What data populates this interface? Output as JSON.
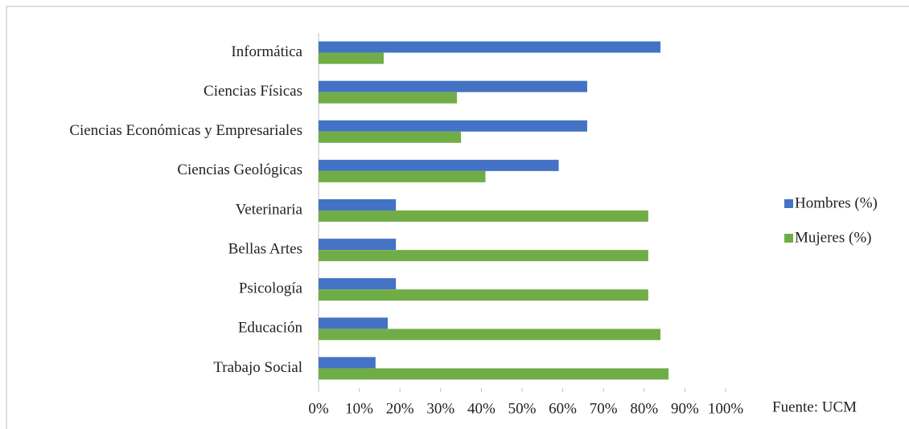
{
  "chart_data": {
    "type": "hbar",
    "categories": [
      "Informática",
      "Ciencias Físicas",
      "Ciencias Económicas y Empresariales",
      "Ciencias Geológicas",
      "Veterinaria",
      "Bellas Artes",
      "Psicología",
      "Educación",
      "Trabajo Social"
    ],
    "series": [
      {
        "name": "Hombres (%)",
        "color": "#4472c4",
        "values": [
          84,
          66,
          66,
          59,
          19,
          19,
          19,
          17,
          14
        ]
      },
      {
        "name": "Mujeres (%)",
        "color": "#70ad47",
        "values": [
          16,
          34,
          35,
          41,
          81,
          81,
          81,
          84,
          86
        ]
      }
    ],
    "xlim": [
      0,
      100
    ],
    "xticks": [
      {
        "value": 0,
        "label": "0%"
      },
      {
        "value": 10,
        "label": "10%"
      },
      {
        "value": 20,
        "label": "20%"
      },
      {
        "value": 30,
        "label": "30%"
      },
      {
        "value": 40,
        "label": "40%"
      },
      {
        "value": 50,
        "label": "50%"
      },
      {
        "value": 60,
        "label": "60%"
      },
      {
        "value": 70,
        "label": "70%"
      },
      {
        "value": 80,
        "label": "80%"
      },
      {
        "value": 90,
        "label": "90%"
      },
      {
        "value": 100,
        "label": "100%"
      }
    ],
    "legend": "right",
    "annotation": "Fuente: UCM"
  }
}
